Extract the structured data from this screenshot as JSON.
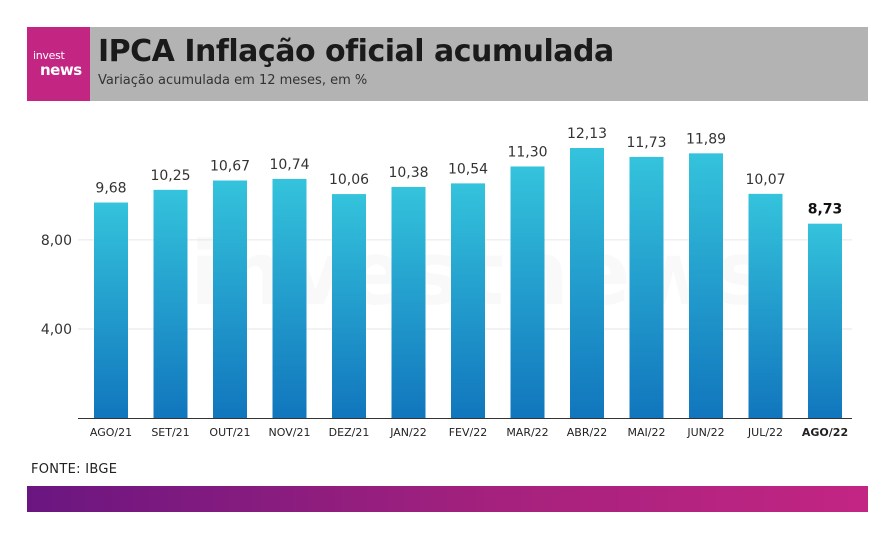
{
  "header": {
    "logo_top": "invest",
    "logo_bottom": "news",
    "title": "IPCA Inflação oficial acumulada",
    "subtitle": "Variação acumulada em 12 meses, em %"
  },
  "watermark": "investnews",
  "source": "FONTE: IBGE",
  "colors": {
    "bar_top": "#34c3dc",
    "bar_bottom": "#1176bd",
    "header_bg": "#b3b3b3",
    "logo_bg": "#c32583",
    "footer_start": "#6a1681",
    "footer_end": "#c32583"
  },
  "chart_data": {
    "type": "bar",
    "categories": [
      "AGO/21",
      "SET/21",
      "OUT/21",
      "NOV/21",
      "DEZ/21",
      "JAN/22",
      "FEV/22",
      "MAR/22",
      "ABR/22",
      "MAI/22",
      "JUN/22",
      "JUL/22",
      "AGO/22"
    ],
    "value_labels": [
      "9,68",
      "10,25",
      "10,67",
      "10,74",
      "10,06",
      "10,38",
      "10,54",
      "11,30",
      "12,13",
      "11,73",
      "11,89",
      "10,07",
      "8,73"
    ],
    "values": [
      9.68,
      10.25,
      10.67,
      10.74,
      10.06,
      10.38,
      10.54,
      11.3,
      12.13,
      11.73,
      11.89,
      10.07,
      8.73
    ],
    "highlight_index": 12,
    "title": "IPCA Inflação oficial acumulada",
    "subtitle": "Variação acumulada em 12 meses, em %",
    "xlabel": "",
    "ylabel": "",
    "ylim": [
      0,
      12.13
    ],
    "yticks": [
      4,
      8
    ],
    "ytick_labels": [
      "4,00",
      "8,00"
    ],
    "grid": true,
    "legend": "none"
  }
}
